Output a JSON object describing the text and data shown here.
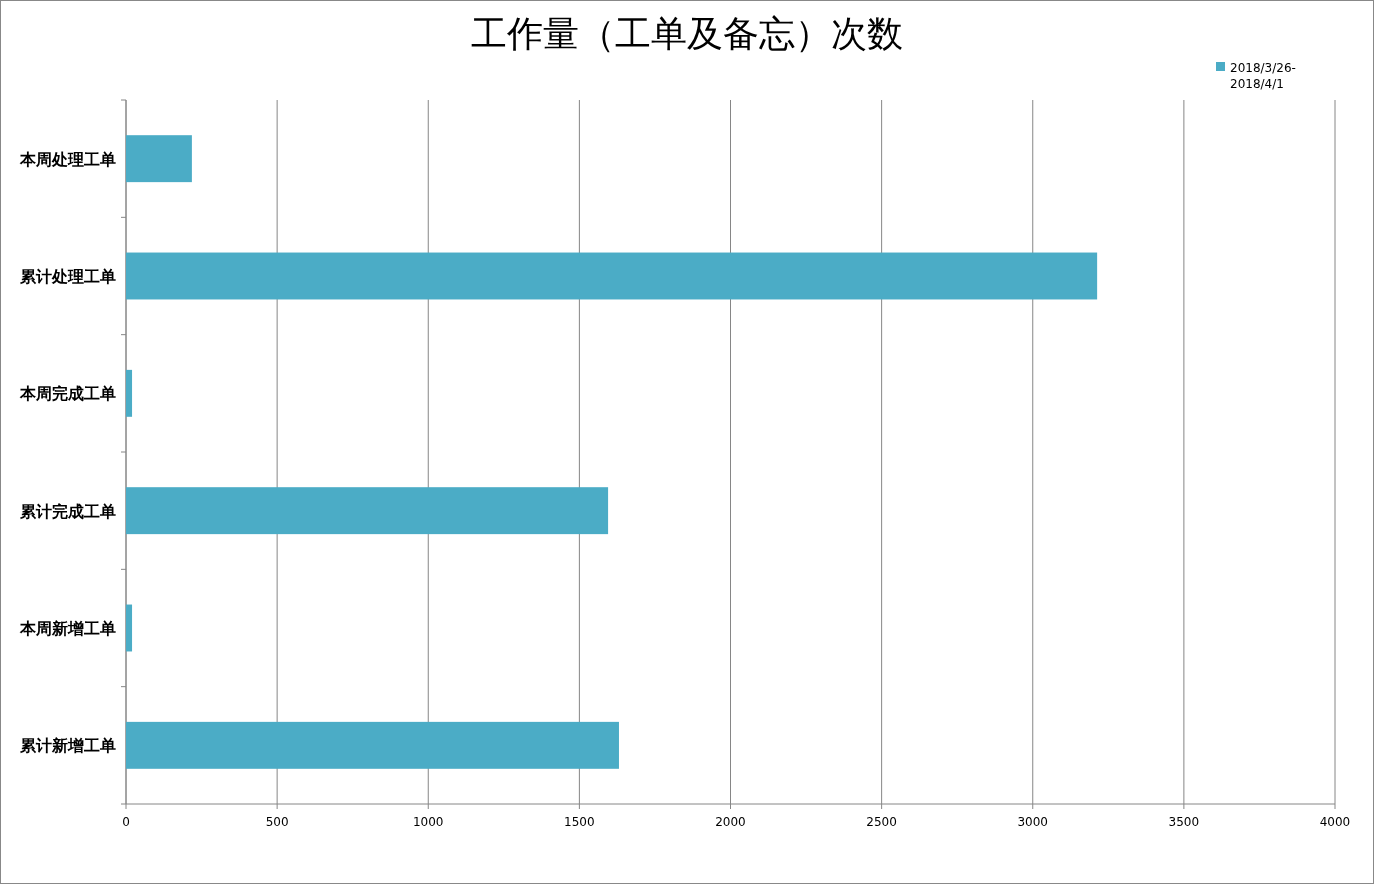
{
  "chart_data": {
    "type": "bar",
    "orientation": "horizontal",
    "title": "工作量（工单及备忘）次数",
    "categories": [
      "本周处理工单",
      "累计处理工单",
      "本周完成工单",
      "累计完成工单",
      "本周新增工单",
      "累计新增工单"
    ],
    "series": [
      {
        "name": "2018/3/26-2018/4/1",
        "color": "#4bacc6",
        "values": [
          218,
          3213,
          20,
          1595,
          20,
          1631
        ]
      }
    ],
    "xlim": [
      0,
      4000
    ],
    "xticks": [
      0,
      500,
      1000,
      1500,
      2000,
      2500,
      3000,
      3500,
      4000
    ],
    "grid": "x",
    "legend": "top right"
  }
}
